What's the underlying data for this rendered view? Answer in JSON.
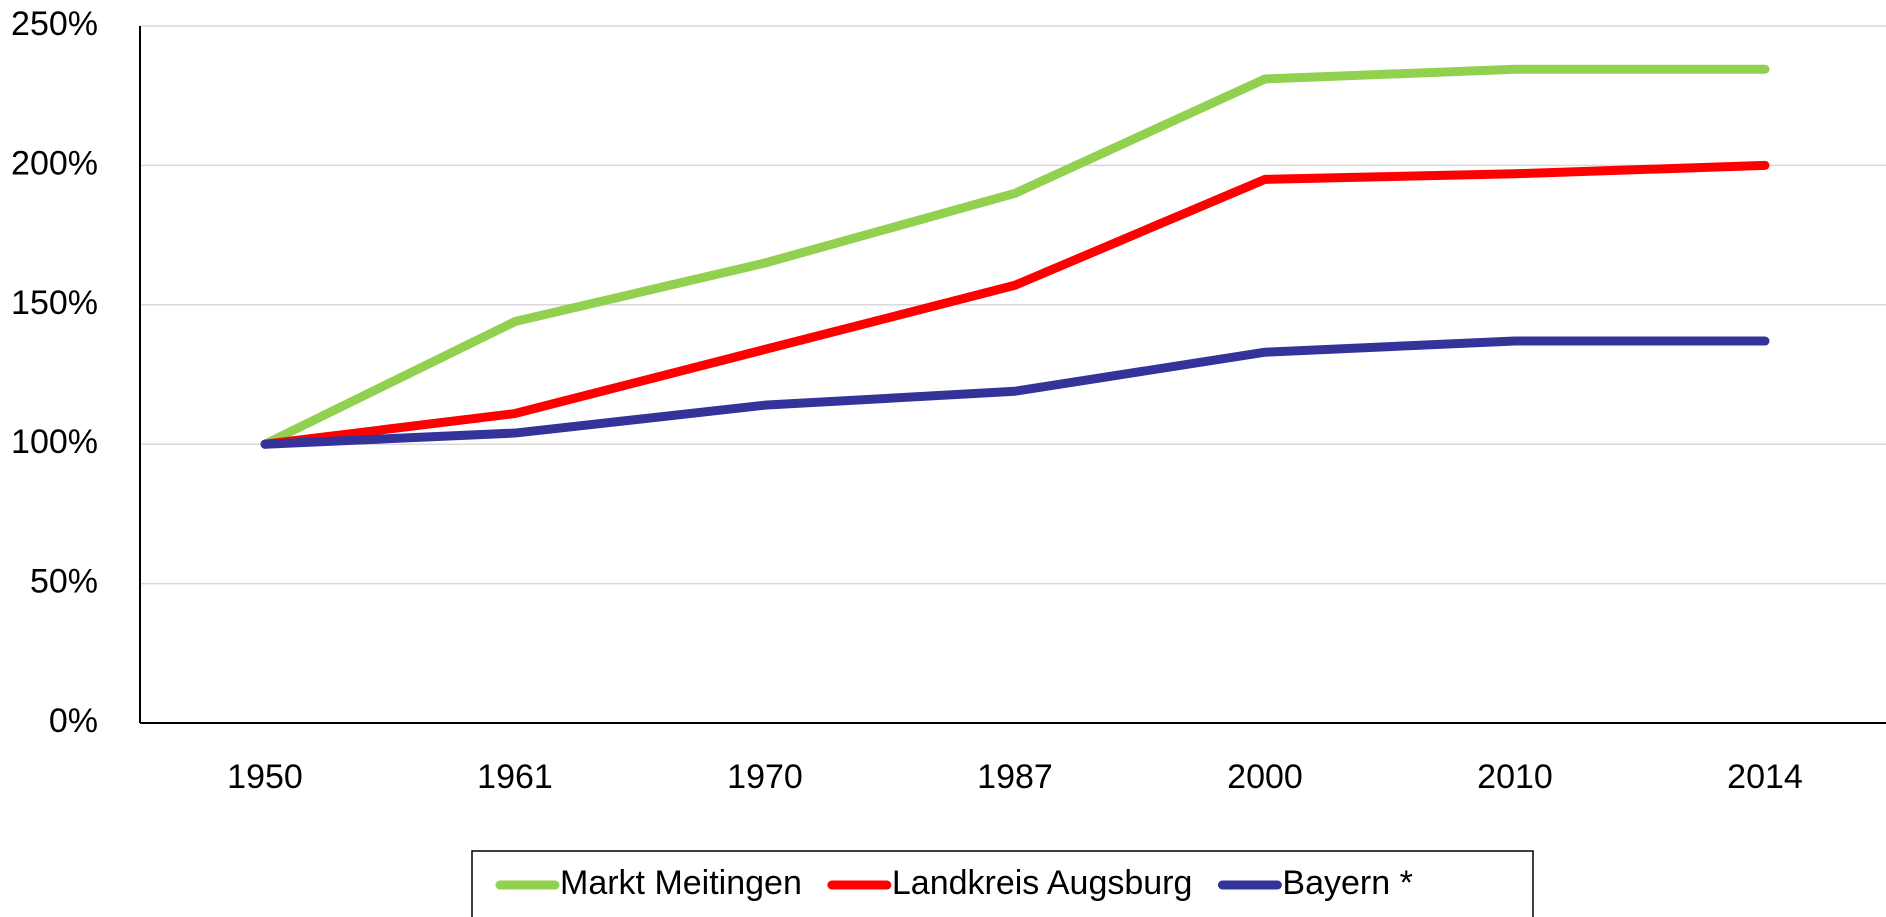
{
  "chart_data": {
    "type": "line",
    "categories": [
      "1950",
      "1961",
      "1970",
      "1987",
      "2000",
      "2010",
      "2014"
    ],
    "series": [
      {
        "name": "Markt Meitingen",
        "color": "#92d050",
        "values": [
          100,
          144,
          165,
          190,
          231,
          234.5,
          234.5
        ]
      },
      {
        "name": "Landkreis Augsburg",
        "color": "#ff0000",
        "values": [
          100,
          111,
          134,
          157,
          195,
          197,
          200
        ]
      },
      {
        "name": "Bayern *",
        "color": "#333399",
        "values": [
          100,
          104,
          114,
          119,
          133,
          137,
          137
        ]
      }
    ],
    "ylim": [
      0,
      250
    ],
    "yticks": [
      {
        "value": 0,
        "label": "0%"
      },
      {
        "value": 50,
        "label": "50%"
      },
      {
        "value": 100,
        "label": "100%"
      },
      {
        "value": 150,
        "label": "150%"
      },
      {
        "value": 200,
        "label": "200%"
      },
      {
        "value": 250,
        "label": "250%"
      }
    ],
    "grid": true,
    "legend": "bottom"
  }
}
